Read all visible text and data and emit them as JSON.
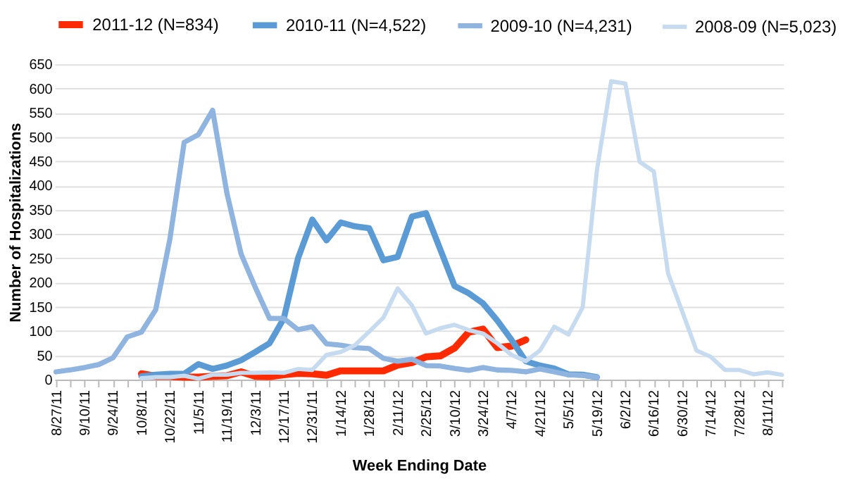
{
  "chart_data": {
    "type": "line",
    "xlabel": "Week Ending Date",
    "ylabel": "Number of Hospitalizations",
    "categories": [
      "8/27/11",
      null,
      "9/10/11",
      null,
      "9/24/11",
      null,
      "10/8/11",
      null,
      "10/22/11",
      null,
      "11/5/11",
      null,
      "11/19/11",
      null,
      "12/3/11",
      null,
      "12/17/11",
      null,
      "12/31/11",
      null,
      "1/14/12",
      null,
      "1/28/12",
      null,
      "2/11/12",
      null,
      "2/25/12",
      null,
      "3/10/12",
      null,
      "3/24/12",
      null,
      "4/7/12",
      null,
      "4/21/12",
      null,
      "5/5/12",
      null,
      "5/19/12",
      null,
      "6/2/12",
      null,
      "6/16/12",
      null,
      "6/30/12",
      null,
      "7/14/12",
      null,
      "7/28/12",
      null,
      "8/11/12",
      null
    ],
    "series": [
      {
        "name": "2011-12 (N=834)",
        "color": "#ff2a00",
        "values": [
          null,
          null,
          null,
          null,
          null,
          null,
          12,
          7,
          7,
          5,
          5,
          7,
          8,
          16,
          7,
          6,
          10,
          13,
          12,
          9,
          18,
          18,
          18,
          18,
          30,
          35,
          47,
          49,
          65,
          98,
          104,
          66,
          69,
          82,
          null,
          null,
          null,
          null,
          null,
          null,
          null,
          null,
          null,
          null,
          null,
          null,
          null,
          null,
          null,
          null,
          null,
          null
        ]
      },
      {
        "name": "2010-11 (N=4,522)",
        "color": "#5b9bd5",
        "values": [
          null,
          null,
          null,
          null,
          null,
          null,
          7,
          10,
          12,
          12,
          32,
          22,
          29,
          40,
          57,
          75,
          126,
          250,
          330,
          287,
          324,
          316,
          312,
          246,
          253,
          336,
          343,
          268,
          193,
          178,
          157,
          122,
          82,
          38,
          29,
          23,
          11,
          10,
          5,
          null,
          null,
          null,
          null,
          null,
          null,
          null,
          null,
          null,
          null,
          null,
          null,
          null
        ]
      },
      {
        "name": "2009-10 (N=4,231)",
        "color": "#8fb4e0",
        "values": [
          16,
          20,
          25,
          31,
          45,
          88,
          98,
          144,
          290,
          489,
          505,
          555,
          385,
          259,
          190,
          126,
          126,
          103,
          109,
          74,
          71,
          66,
          64,
          44,
          38,
          42,
          29,
          28,
          23,
          19,
          25,
          20,
          19,
          16,
          22,
          16,
          10,
          9,
          5,
          null,
          null,
          null,
          null,
          null,
          null,
          null,
          null,
          null,
          null,
          null,
          null,
          null
        ]
      },
      {
        "name": "2008-09 (N=5,023)",
        "color": "#c6dbef",
        "values": [
          null,
          null,
          null,
          null,
          null,
          null,
          3,
          5,
          5,
          8,
          2,
          10,
          10,
          14,
          14,
          15,
          14,
          22,
          20,
          51,
          57,
          71,
          99,
          128,
          188,
          153,
          95,
          106,
          113,
          102,
          95,
          75,
          51,
          38,
          60,
          109,
          93,
          149,
          431,
          615,
          610,
          449,
          429,
          219,
          140,
          60,
          47,
          20,
          20,
          11,
          15,
          10
        ]
      }
    ],
    "ylim": [
      0,
      650
    ],
    "yticks": [
      0,
      50,
      100,
      150,
      200,
      250,
      300,
      350,
      400,
      450,
      500,
      550,
      600,
      650
    ],
    "grid": "y",
    "legend": "top"
  }
}
